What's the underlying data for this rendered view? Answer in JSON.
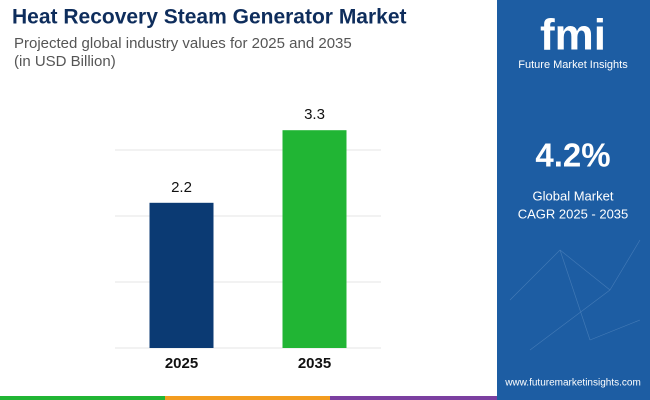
{
  "chart_data": {
    "type": "bar",
    "title": "Heat Recovery Steam Generator Market",
    "subtitle": "Projected global industry values for 2025 and 2035",
    "unit_note": "(in USD Billion)",
    "categories": [
      "2025",
      "2035"
    ],
    "values": [
      2.2,
      3.3
    ],
    "colors": [
      "#0b3a73",
      "#21b534"
    ],
    "ylim": [
      0,
      3.5
    ],
    "yticks": [
      1,
      2,
      3
    ],
    "grid": true
  },
  "sidebar": {
    "logo": "fmi",
    "brand": "Future Market Insights",
    "cagr": "4.2%",
    "cagr_label_1": "Global Market",
    "cagr_label_2": "CAGR 2025 - 2035",
    "url": "www.futuremarketinsights.com"
  }
}
